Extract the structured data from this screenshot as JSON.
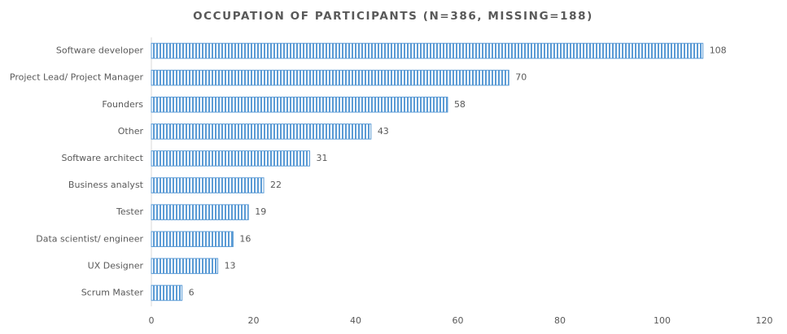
{
  "chart_data": {
    "type": "hbar",
    "title": "OCCUPATION OF PARTICIPANTS (N=386, MISSING=188)",
    "categories": [
      "Software developer",
      "Project Lead/ Project Manager",
      "Founders",
      "Other",
      "Software architect",
      "Business analyst",
      "Tester",
      "Data scientist/ engineer",
      "UX Designer",
      "Scrum Master"
    ],
    "values": [
      108,
      70,
      58,
      43,
      31,
      22,
      19,
      16,
      13,
      6
    ],
    "color": "#5b9bd5",
    "xlim": [
      0,
      120
    ],
    "xticks": [
      0,
      20,
      40,
      60,
      80,
      100,
      120
    ],
    "grid": false
  }
}
